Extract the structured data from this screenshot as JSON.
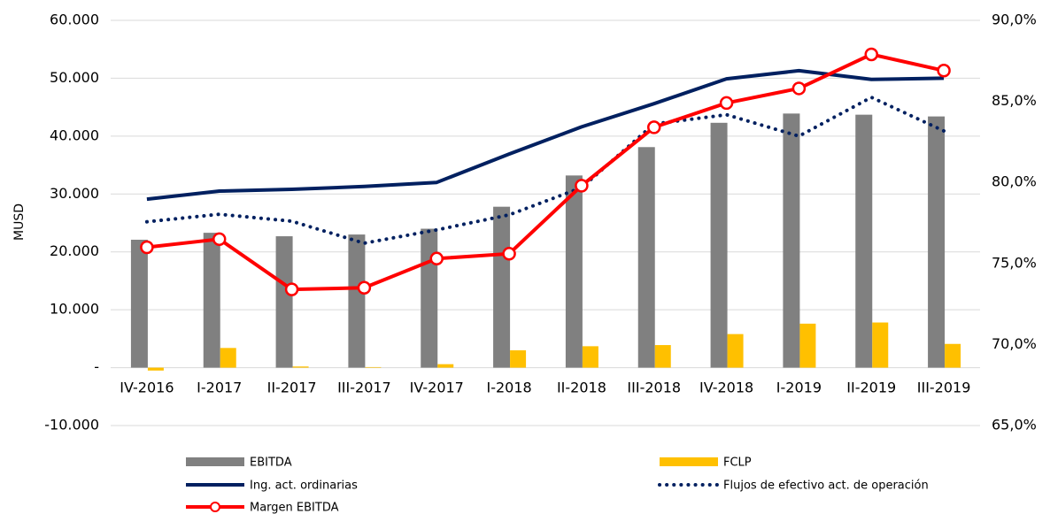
{
  "chart_data": {
    "type": "bar-line",
    "y_label": "MUSD",
    "categories": [
      "IV-2016",
      "I-2017",
      "II-2017",
      "III-2017",
      "IV-2017",
      "I-2018",
      "II-2018",
      "III-2018",
      "IV-2018",
      "I-2019",
      "II-2019",
      "III-2019"
    ],
    "series": [
      {
        "name": "EBITDA",
        "kind": "bar",
        "color": "#808080",
        "values": [
          22100,
          23300,
          22700,
          23000,
          24000,
          27800,
          33200,
          38100,
          42300,
          43900,
          43700,
          43400
        ]
      },
      {
        "name": "FCLP",
        "kind": "bar",
        "color": "#ffc000",
        "values": [
          -500,
          3400,
          200,
          100,
          600,
          3000,
          3700,
          3900,
          5800,
          7600,
          7800,
          4100
        ]
      },
      {
        "name": "Ing. act. ordinarias",
        "kind": "line",
        "color": "#002060",
        "values": [
          29100,
          30500,
          30800,
          31300,
          32000,
          36900,
          41600,
          45600,
          49900,
          51300,
          49800,
          50000
        ]
      },
      {
        "name": "Flujos de efectivo act. de operación",
        "kind": "line",
        "dotted": true,
        "color": "#002060",
        "values": [
          25200,
          26500,
          25300,
          21500,
          23800,
          26400,
          31100,
          42100,
          43700,
          40000,
          46700,
          40900
        ]
      },
      {
        "name": "Margen EBITDA",
        "kind": "line",
        "markers": true,
        "axis": "y2",
        "color": "#ff0000",
        "values": [
          76.0,
          76.5,
          73.4,
          73.5,
          75.3,
          75.6,
          79.8,
          83.4,
          84.9,
          85.8,
          87.9,
          86.9
        ]
      }
    ],
    "ylim": [
      -10000,
      60000
    ],
    "yticks": [
      {
        "value": -10000,
        "label": "-10.000"
      },
      {
        "value": 0,
        "label": "-"
      },
      {
        "value": 10000,
        "label": "10.000"
      },
      {
        "value": 20000,
        "label": "20.000"
      },
      {
        "value": 30000,
        "label": "30.000"
      },
      {
        "value": 40000,
        "label": "40.000"
      },
      {
        "value": 50000,
        "label": "50.000"
      },
      {
        "value": 60000,
        "label": "60.000"
      }
    ],
    "y2lim": [
      65,
      90
    ],
    "y2ticks": [
      {
        "value": 65,
        "label": "65,0%"
      },
      {
        "value": 70,
        "label": "70,0%"
      },
      {
        "value": 75,
        "label": "75,0%"
      },
      {
        "value": 80,
        "label": "80,0%"
      },
      {
        "value": 85,
        "label": "85,0%"
      },
      {
        "value": 90,
        "label": "90,0%"
      }
    ],
    "grid": true
  }
}
